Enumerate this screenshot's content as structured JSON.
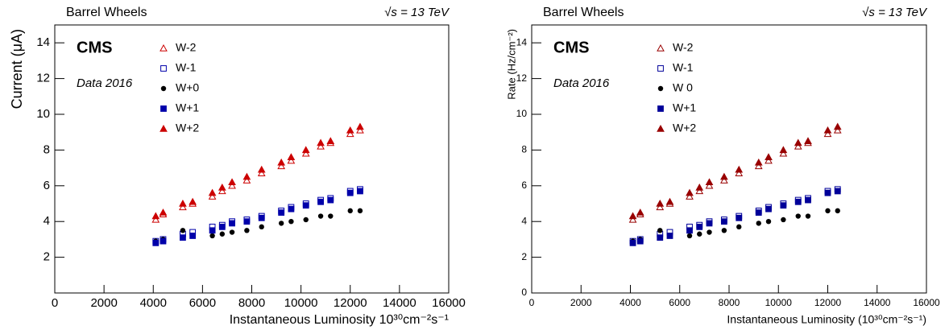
{
  "chart_data": [
    {
      "type": "scatter",
      "title": "Barrel Wheels",
      "annotation": "√s = 13 TeV",
      "label": "CMS",
      "sublabel": "Data 2016",
      "xlabel": "Instantaneous Luminosity 10³⁰cm⁻²s⁻¹",
      "ylabel": "Current (μA)",
      "xlim": [
        0,
        16000
      ],
      "xticks": [
        0,
        2000,
        4000,
        6000,
        8000,
        10000,
        12000,
        14000,
        16000
      ],
      "ylim": [
        0,
        15
      ],
      "yticks": [
        2,
        4,
        6,
        8,
        10,
        12,
        14
      ],
      "x": [
        4100,
        4400,
        5200,
        5600,
        6400,
        6800,
        7200,
        7800,
        8400,
        9200,
        9600,
        10200,
        10800,
        11200,
        12000,
        12400
      ],
      "series": [
        {
          "name": "W-2",
          "color": "#cc0000",
          "marker": "triangle-open",
          "values": [
            4.1,
            4.4,
            4.8,
            5.0,
            5.4,
            5.7,
            6.0,
            6.3,
            6.7,
            7.1,
            7.4,
            7.8,
            8.2,
            8.4,
            8.9,
            9.1
          ]
        },
        {
          "name": "W-1",
          "color": "#0000aa",
          "marker": "square-open",
          "values": [
            2.9,
            3.0,
            3.3,
            3.4,
            3.7,
            3.8,
            4.0,
            4.1,
            4.3,
            4.6,
            4.8,
            5.0,
            5.2,
            5.3,
            5.7,
            5.8
          ]
        },
        {
          "name": "W+0",
          "color": "#000000",
          "marker": "circle",
          "values": [
            2.9,
            3.0,
            3.5,
            3.2,
            3.2,
            3.3,
            3.4,
            3.5,
            3.7,
            3.9,
            4.0,
            4.1,
            4.3,
            4.3,
            4.6,
            4.6
          ]
        },
        {
          "name": "W+1",
          "color": "#0000aa",
          "marker": "square",
          "values": [
            2.8,
            2.9,
            3.1,
            3.2,
            3.5,
            3.7,
            3.9,
            4.0,
            4.2,
            4.5,
            4.7,
            4.9,
            5.1,
            5.2,
            5.6,
            5.7
          ]
        },
        {
          "name": "W+2",
          "color": "#cc0000",
          "marker": "triangle",
          "values": [
            4.3,
            4.5,
            5.0,
            5.1,
            5.6,
            5.9,
            6.2,
            6.5,
            6.9,
            7.3,
            7.6,
            8.0,
            8.4,
            8.5,
            9.1,
            9.3
          ]
        }
      ]
    },
    {
      "type": "scatter",
      "title": "Barrel Wheels",
      "annotation": "√s = 13 TeV",
      "label": "CMS",
      "sublabel": "Data 2016",
      "xlabel": "Instantaneous Luminosity (10³⁰cm⁻²s⁻¹)",
      "ylabel": "Rate (Hz/cm⁻²)",
      "xlim": [
        0,
        16000
      ],
      "xticks": [
        0,
        2000,
        4000,
        6000,
        8000,
        10000,
        12000,
        14000,
        16000
      ],
      "ylim": [
        0,
        15
      ],
      "yticks": [
        0,
        2,
        4,
        6,
        8,
        10,
        12,
        14
      ],
      "x": [
        4100,
        4400,
        5200,
        5600,
        6400,
        6800,
        7200,
        7800,
        8400,
        9200,
        9600,
        10200,
        10800,
        11200,
        12000,
        12400
      ],
      "series": [
        {
          "name": "W-2",
          "color": "#990000",
          "marker": "triangle-open",
          "values": [
            4.1,
            4.4,
            4.8,
            5.0,
            5.4,
            5.7,
            6.0,
            6.3,
            6.7,
            7.1,
            7.4,
            7.8,
            8.2,
            8.4,
            8.9,
            9.1
          ]
        },
        {
          "name": "W-1",
          "color": "#000099",
          "marker": "square-open",
          "values": [
            2.9,
            3.0,
            3.3,
            3.4,
            3.7,
            3.8,
            4.0,
            4.1,
            4.3,
            4.6,
            4.8,
            5.0,
            5.2,
            5.3,
            5.7,
            5.8
          ]
        },
        {
          "name": "W 0",
          "color": "#000000",
          "marker": "circle",
          "values": [
            2.9,
            3.0,
            3.5,
            3.2,
            3.2,
            3.3,
            3.4,
            3.5,
            3.7,
            3.9,
            4.0,
            4.1,
            4.3,
            4.3,
            4.6,
            4.6
          ]
        },
        {
          "name": "W+1",
          "color": "#000099",
          "marker": "square",
          "values": [
            2.8,
            2.9,
            3.1,
            3.2,
            3.5,
            3.7,
            3.9,
            4.0,
            4.2,
            4.5,
            4.7,
            4.9,
            5.1,
            5.2,
            5.6,
            5.7
          ]
        },
        {
          "name": "W+2",
          "color": "#990000",
          "marker": "triangle",
          "values": [
            4.3,
            4.5,
            5.0,
            5.1,
            5.6,
            5.9,
            6.2,
            6.5,
            6.9,
            7.3,
            7.6,
            8.0,
            8.4,
            8.5,
            9.1,
            9.3
          ]
        }
      ]
    }
  ]
}
